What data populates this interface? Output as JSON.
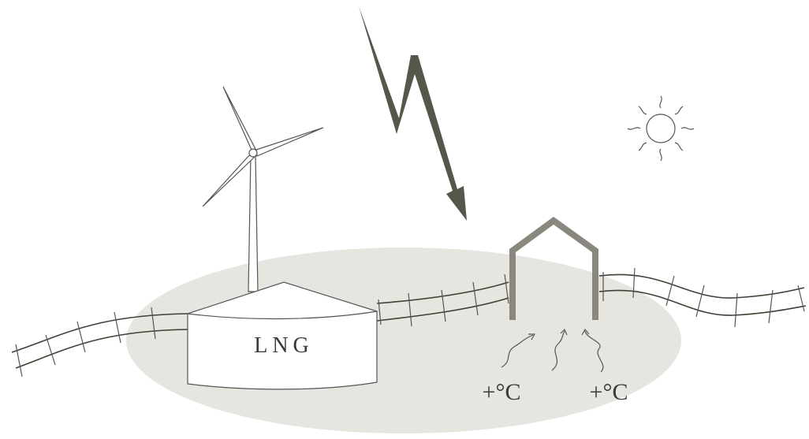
{
  "labels": {
    "tank": "LNG",
    "heat": [
      "+°C",
      "+°C"
    ]
  }
}
